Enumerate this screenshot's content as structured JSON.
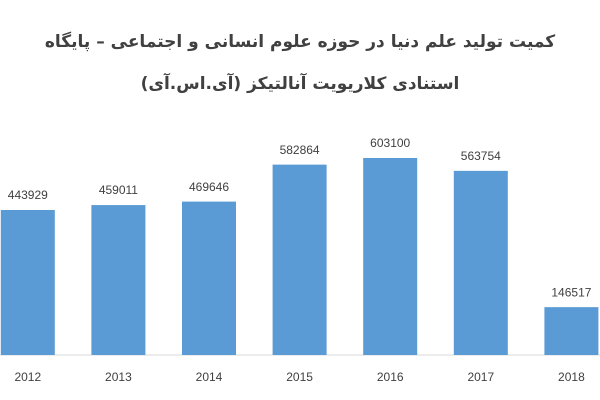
{
  "chart_data": {
    "type": "bar",
    "title": [
      "کمیت تولید علم دنیا در حوزه علوم انسانی و اجتماعی – پایگاه",
      "استنادی کلاریویت آنالتیکز (آی.اس.آی)"
    ],
    "categories": [
      "2012",
      "2013",
      "2014",
      "2015",
      "2016",
      "2017",
      "2018"
    ],
    "values": [
      443929,
      459011,
      469646,
      582864,
      603100,
      563754,
      146517
    ],
    "color": "#5b9bd5"
  }
}
